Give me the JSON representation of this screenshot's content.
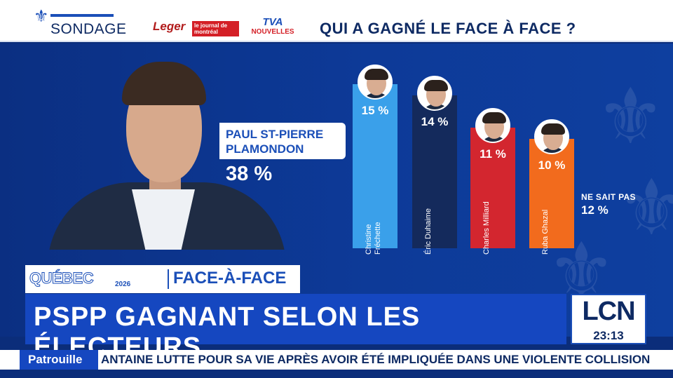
{
  "header": {
    "fleur": "⚜",
    "sondage": "SONDAGE",
    "leger": "Leger",
    "journal": "le journal de montréal",
    "tva_logo": "TVA",
    "tva_label": "NOUVELLES",
    "question": "QUI A GAGNÉ LE FACE À FACE ?"
  },
  "winner": {
    "name": "PAUL ST-PIERRE PLAMONDON",
    "pct": "38 %"
  },
  "chart_data": {
    "type": "bar",
    "categories": [
      "Christine Fréchette",
      "Éric Duhaime",
      "Charles Milliard",
      "Ruba Ghazal"
    ],
    "values": [
      15,
      14,
      11,
      10
    ],
    "value_labels": [
      "15 %",
      "14 %",
      "11 %",
      "10 %"
    ],
    "colors": [
      "#3aa0ea",
      "#142a5c",
      "#d3262f",
      "#f26b1d"
    ],
    "ylim": [
      0,
      20
    ],
    "title": "",
    "xlabel": "",
    "ylabel": ""
  },
  "no_answer": {
    "label": "NE SAIT PAS",
    "pct": "12 %"
  },
  "lower_third": {
    "program": "QUÉBEC",
    "year": "2026",
    "segment": "FACE-À-FACE",
    "headline": "PSPP GAGNANT SELON LES ÉLECTEURS"
  },
  "channel": {
    "logo": "LCN",
    "time": "23:13"
  },
  "ticker": {
    "category": "Patrouille",
    "text": "ANTAINE LUTTE POUR SA VIE APRÈS AVOIR ÉTÉ IMPLIQUÉE DANS UNE VIOLENTE COLLISION"
  }
}
